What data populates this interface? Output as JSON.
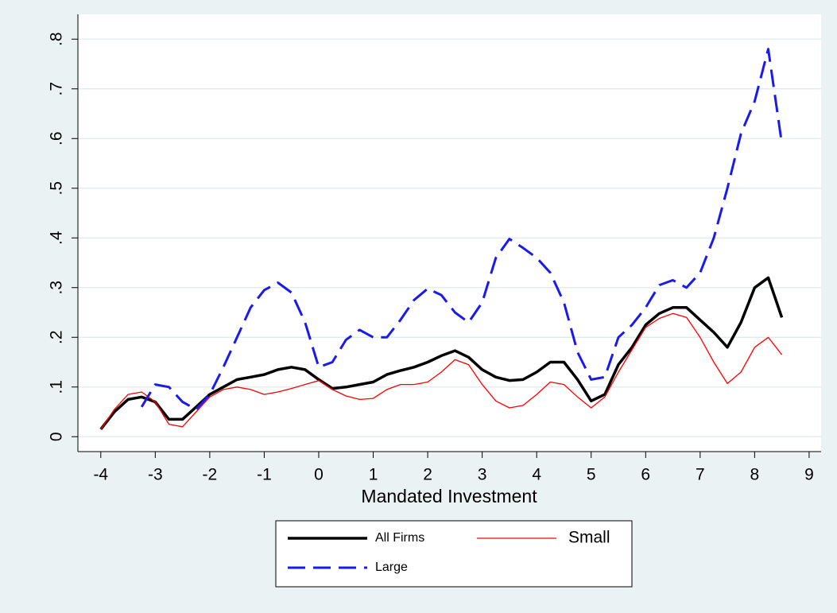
{
  "chart_data": {
    "type": "line",
    "xlabel": "Mandated Investment",
    "x": [
      -4,
      -3.75,
      -3.5,
      -3.25,
      -3,
      -2.75,
      -2.5,
      -2.25,
      -2,
      -1.75,
      -1.5,
      -1.25,
      -1,
      -0.75,
      -0.5,
      -0.25,
      0,
      0.25,
      0.5,
      0.75,
      1,
      1.25,
      1.5,
      1.75,
      2,
      2.25,
      2.5,
      2.75,
      3,
      3.25,
      3.5,
      3.75,
      4,
      4.25,
      4.5,
      4.75,
      5,
      5.25,
      5.5,
      5.75,
      6,
      6.25,
      6.5,
      6.75,
      7,
      7.25,
      7.5,
      7.75,
      8,
      8.25,
      8.5
    ],
    "series": [
      {
        "name": "All Firms",
        "color": "#000000",
        "values": [
          0.015,
          0.05,
          0.075,
          0.08,
          0.07,
          0.035,
          0.035,
          0.06,
          0.085,
          0.1,
          0.115,
          0.12,
          0.125,
          0.135,
          0.14,
          0.135,
          0.115,
          0.097,
          0.1,
          0.105,
          0.11,
          0.125,
          0.133,
          0.14,
          0.15,
          0.163,
          0.173,
          0.16,
          0.135,
          0.12,
          0.113,
          0.115,
          0.13,
          0.15,
          0.15,
          0.115,
          0.072,
          0.085,
          0.145,
          0.18,
          0.225,
          0.248,
          0.26,
          0.26,
          0.235,
          0.21,
          0.18,
          0.23,
          0.3,
          0.32,
          0.24
        ]
      },
      {
        "name": "Small",
        "color": "#ff0000",
        "values": [
          0.015,
          0.055,
          0.085,
          0.09,
          0.07,
          0.025,
          0.02,
          0.05,
          0.08,
          0.095,
          0.1,
          0.095,
          0.085,
          0.09,
          0.097,
          0.105,
          0.113,
          0.095,
          0.082,
          0.075,
          0.077,
          0.095,
          0.105,
          0.105,
          0.11,
          0.13,
          0.155,
          0.145,
          0.105,
          0.072,
          0.058,
          0.063,
          0.085,
          0.11,
          0.105,
          0.08,
          0.058,
          0.08,
          0.13,
          0.175,
          0.22,
          0.238,
          0.248,
          0.24,
          0.2,
          0.15,
          0.107,
          0.13,
          0.18,
          0.2,
          0.165
        ]
      },
      {
        "name": "Large",
        "color": "#1a1aee",
        "values": [
          null,
          null,
          null,
          0.06,
          0.105,
          0.1,
          0.07,
          0.055,
          0.085,
          0.14,
          0.2,
          0.26,
          0.295,
          0.31,
          0.29,
          0.23,
          0.14,
          0.15,
          0.195,
          0.215,
          0.2,
          0.2,
          0.235,
          0.275,
          0.298,
          0.285,
          0.25,
          0.23,
          0.27,
          0.36,
          0.398,
          0.38,
          0.36,
          0.33,
          0.27,
          0.17,
          0.115,
          0.12,
          0.2,
          0.225,
          0.26,
          0.305,
          0.315,
          0.3,
          0.33,
          0.4,
          0.5,
          0.61,
          0.675,
          0.78,
          0.59
        ]
      }
    ],
    "xlim": [
      -4.42,
      9.22
    ],
    "ylim": [
      -0.03,
      0.85
    ],
    "xticks": [
      -4,
      -3,
      -2,
      -1,
      0,
      1,
      2,
      3,
      4,
      5,
      6,
      7,
      8,
      9
    ],
    "yticks": [
      0,
      {
        "value": 0.1,
        "label": ".1"
      },
      {
        "value": 0.2,
        "label": ".2"
      },
      {
        "value": 0.3,
        "label": ".3"
      },
      {
        "value": 0.4,
        "label": ".4"
      },
      {
        "value": 0.5,
        "label": ".5"
      },
      {
        "value": 0.6,
        "label": ".6"
      },
      {
        "value": 0.7,
        "label": ".7"
      },
      {
        "value": 0.8,
        "label": ".8"
      }
    ],
    "grid": true
  }
}
